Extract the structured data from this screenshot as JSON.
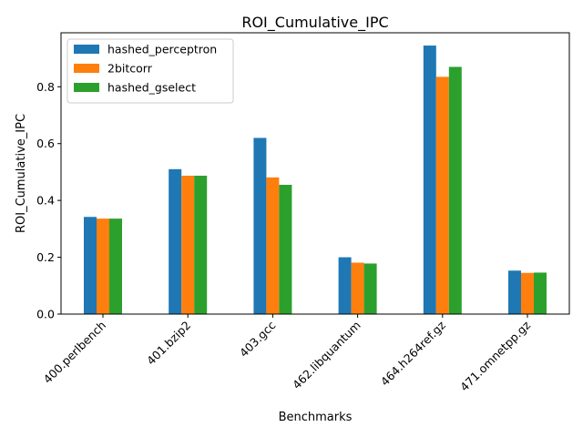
{
  "chart_data": {
    "type": "bar",
    "title": "ROI_Cumulative_IPC",
    "xlabel": "Benchmarks",
    "ylabel": "ROI_Cumulative_IPC",
    "categories": [
      "400.perlbench",
      "401.bzip2",
      "403.gcc",
      "462.libquantum",
      "464.h264ref.gz",
      "471.omnetpp.gz"
    ],
    "series": [
      {
        "name": "hashed_perceptron",
        "color": "#1f77b4",
        "values": [
          0.342,
          0.51,
          0.62,
          0.2,
          0.945,
          0.153
        ]
      },
      {
        "name": "2bitcorr",
        "color": "#ff7f0e",
        "values": [
          0.336,
          0.487,
          0.481,
          0.181,
          0.835,
          0.145
        ]
      },
      {
        "name": "hashed_gselect",
        "color": "#2ca02c",
        "values": [
          0.336,
          0.487,
          0.455,
          0.178,
          0.87,
          0.146
        ]
      }
    ],
    "ylim": [
      0,
      0.99
    ],
    "yticks": [
      "0.0",
      "0.2",
      "0.4",
      "0.6",
      "0.8"
    ],
    "legend_position": "top-left",
    "grid": false
  }
}
